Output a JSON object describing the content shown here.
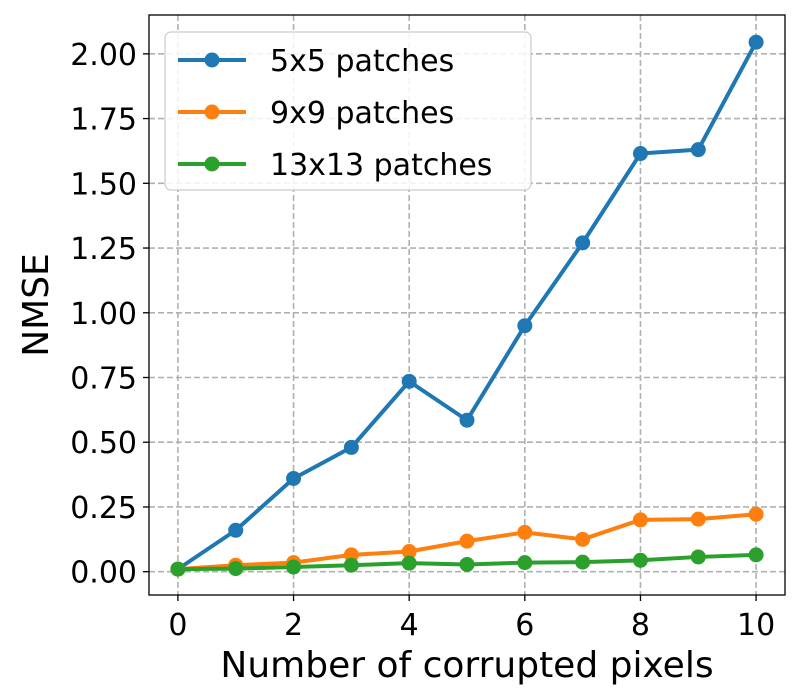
{
  "chart_data": {
    "type": "line",
    "x": [
      0,
      1,
      2,
      3,
      4,
      5,
      6,
      7,
      8,
      9,
      10
    ],
    "series": [
      {
        "name": "5x5 patches",
        "color": "#1f77b4",
        "values": [
          0.01,
          0.16,
          0.36,
          0.48,
          0.735,
          0.585,
          0.95,
          1.27,
          1.615,
          1.63,
          2.045
        ]
      },
      {
        "name": "9x9 patches",
        "color": "#ff7f0e",
        "values": [
          0.01,
          0.025,
          0.035,
          0.065,
          0.078,
          0.118,
          0.152,
          0.125,
          0.2,
          0.203,
          0.222
        ]
      },
      {
        "name": "13x13 patches",
        "color": "#2ca02c",
        "values": [
          0.01,
          0.012,
          0.018,
          0.025,
          0.033,
          0.028,
          0.035,
          0.037,
          0.044,
          0.057,
          0.065
        ]
      }
    ],
    "xlabel": "Number of corrupted pixels",
    "ylabel": "NMSE",
    "xlim": [
      -0.5,
      10.5
    ],
    "ylim": [
      -0.09,
      2.15
    ],
    "xticks": [
      "0",
      "2",
      "4",
      "6",
      "8",
      "10"
    ],
    "yticks": [
      "0.00",
      "0.25",
      "0.50",
      "0.75",
      "1.00",
      "1.25",
      "1.50",
      "1.75",
      "2.00"
    ],
    "grid": true,
    "grid_style": "dashed",
    "legend_position": "top-left"
  }
}
